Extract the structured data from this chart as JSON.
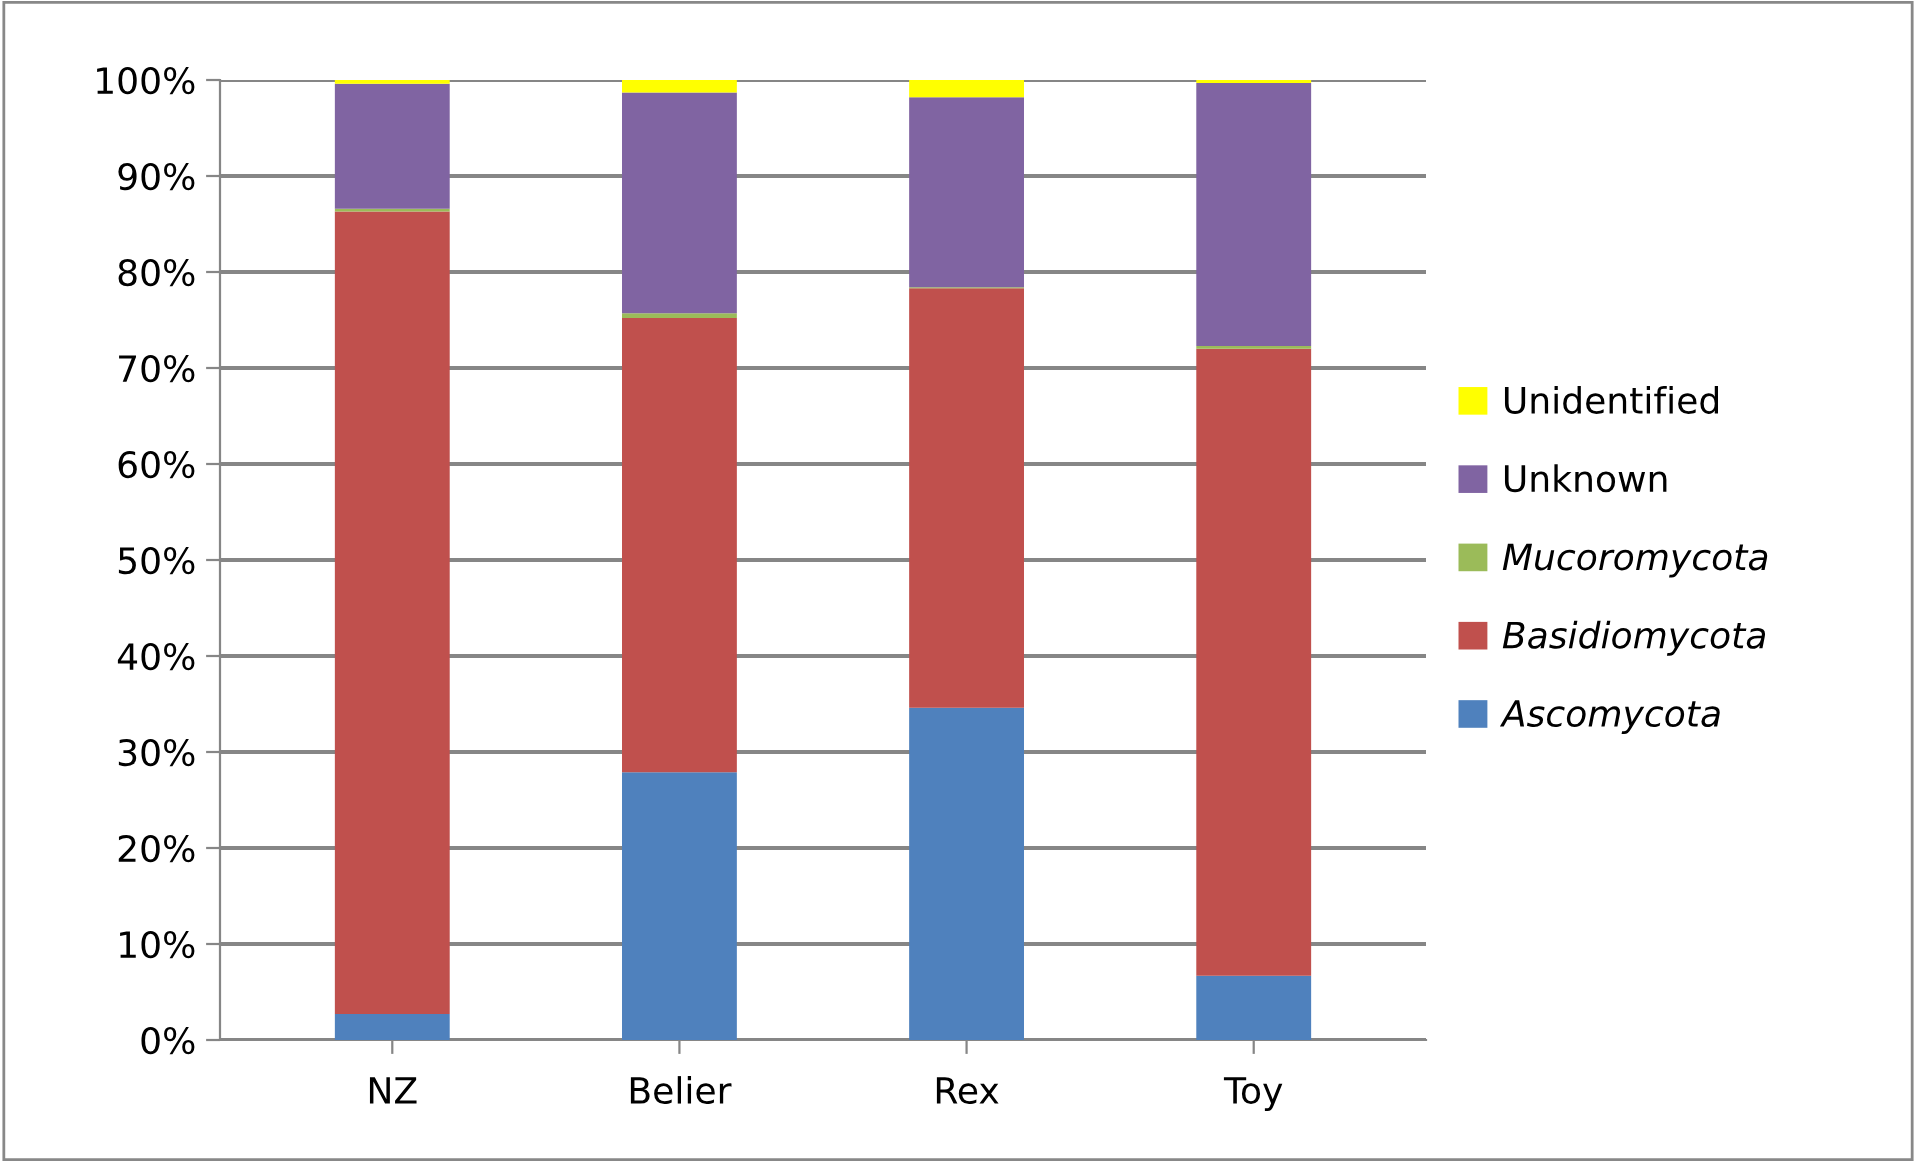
{
  "chart_data": {
    "type": "bar",
    "stacked": true,
    "categories": [
      "NZ",
      "Belier",
      "Rex",
      "Toy"
    ],
    "series": [
      {
        "name": "Ascomycota",
        "color": "#4f81bd",
        "values": [
          2.7,
          27.9,
          34.6,
          6.7
        ]
      },
      {
        "name": "Basidiomycota",
        "color": "#c0504d",
        "values": [
          83.6,
          47.3,
          43.7,
          65.3
        ]
      },
      {
        "name": "Mucoromycota",
        "color": "#9bbb59",
        "values": [
          0.3,
          0.5,
          0.1,
          0.3
        ]
      },
      {
        "name": "Unknown",
        "color": "#8064a2",
        "values": [
          13.0,
          23.0,
          19.8,
          27.4
        ]
      },
      {
        "name": "Unidentified",
        "color": "#ffff00",
        "values": [
          0.4,
          1.3,
          1.8,
          0.3
        ]
      }
    ],
    "ylim": [
      0,
      100
    ],
    "yticks": [
      {
        "value": 0,
        "label": "0%"
      },
      {
        "value": 10,
        "label": "10%"
      },
      {
        "value": 20,
        "label": "20%"
      },
      {
        "value": 30,
        "label": "30%"
      },
      {
        "value": 40,
        "label": "40%"
      },
      {
        "value": 50,
        "label": "50%"
      },
      {
        "value": 60,
        "label": "60%"
      },
      {
        "value": 70,
        "label": "70%"
      },
      {
        "value": 80,
        "label": "80%"
      },
      {
        "value": 90,
        "label": "90%"
      },
      {
        "value": 100,
        "label": "100%"
      }
    ],
    "grid": "y",
    "legend": "right"
  }
}
